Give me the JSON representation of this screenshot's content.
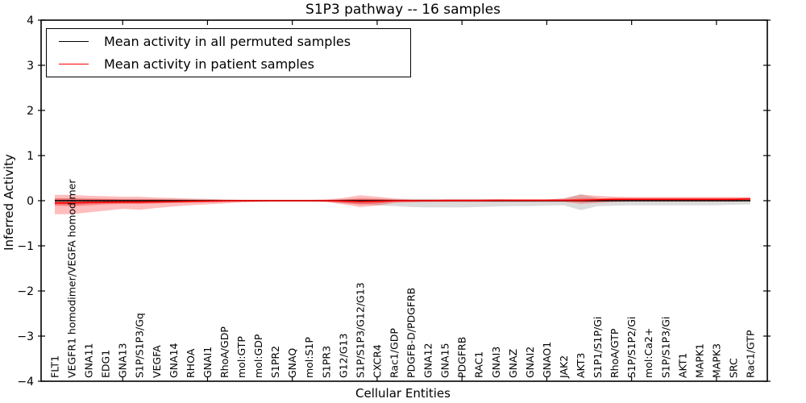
{
  "chart": {
    "title": "S1P3 pathway -- 16 samples",
    "xlabel": "Cellular Entities",
    "ylabel": "Inferred Activity"
  },
  "chart_data": {
    "type": "line",
    "title": "S1P3 pathway -- 16 samples",
    "xlabel": "Cellular Entities",
    "ylabel": "Inferred Activity",
    "ylim": [
      -4,
      4
    ],
    "ytick_labels": [
      "4",
      "3",
      "2",
      "1",
      "0",
      "−1",
      "−2",
      "−3",
      "−4"
    ],
    "ytick_values": [
      4,
      3,
      2,
      1,
      0,
      -1,
      -2,
      -3,
      -4
    ],
    "xtick_every": 5,
    "xtick_start_index": 4,
    "grid": false,
    "legend_position": "upper left",
    "legend": [
      {
        "label": "Mean activity in all permuted samples",
        "color": "#000000"
      },
      {
        "label": "Mean activity in patient samples",
        "color": "#ff0000"
      }
    ],
    "categories": [
      "FLT1",
      "VEGFR1 homodimer/VEGFA homodimer",
      "GNA11",
      "EDG1",
      "GNA13",
      "S1P/S1P3/Gq",
      "VEGFA",
      "GNA14",
      "RHOA",
      "GNAI1",
      "RhoA/GDP",
      "mol:GTP",
      "mol:GDP",
      "S1PR2",
      "GNAQ",
      "mol:S1P",
      "S1PR3",
      "G12/G13",
      "S1P/S1P3/G12/G13",
      "CXCR4",
      "Rac1/GDP",
      "PDGFB-D/PDGFRB",
      "GNA12",
      "GNA15",
      "PDGFRB",
      "RAC1",
      "GNAI3",
      "GNAZ",
      "GNAI2",
      "GNAO1",
      "JAK2",
      "AKT3",
      "S1P1/S1P/Gi",
      "RhoA/GTP",
      "S1P/S1P2/Gi",
      "mol:Ca2+",
      "S1P/S1P3/Gi",
      "AKT1",
      "MAPK1",
      "MAPK3",
      "SRC",
      "Rac1/GTP"
    ],
    "series": [
      {
        "name": "Mean activity in all permuted samples",
        "color": "#000000",
        "values": [
          0,
          0,
          0,
          0,
          0,
          0,
          0,
          0,
          0,
          0,
          0,
          0,
          0,
          0,
          0,
          0,
          0,
          0,
          0,
          0,
          0,
          0,
          0,
          0,
          0,
          0,
          0,
          0,
          0,
          0,
          0,
          0,
          0,
          0,
          0,
          0,
          0,
          0,
          0,
          0,
          0,
          0
        ]
      },
      {
        "name": "Mean activity in patient samples",
        "color": "#ff0000",
        "values": [
          -0.05,
          -0.05,
          -0.04,
          -0.035,
          -0.03,
          -0.03,
          -0.025,
          -0.02,
          -0.015,
          -0.01,
          -0.005,
          0,
          0,
          0,
          0,
          0,
          0,
          -0.01,
          -0.02,
          -0.015,
          -0.005,
          0,
          0,
          0.005,
          0.005,
          0.005,
          0.01,
          0.01,
          0.01,
          0.01,
          0.01,
          0.01,
          0.02,
          0.03,
          0.03,
          0.03,
          0.03,
          0.03,
          0.03,
          0.03,
          0.03,
          0.04
        ]
      }
    ],
    "bands": [
      {
        "name": "permuted-activity-range",
        "color": "#000000",
        "opacity": 0.14,
        "upper": [
          0.05,
          0.05,
          0.05,
          0.04,
          0.04,
          0.04,
          0.04,
          0.04,
          0.03,
          0.03,
          0.02,
          0.02,
          0.015,
          0.015,
          0.015,
          0.015,
          0.02,
          0.03,
          0.04,
          0.04,
          0.04,
          0.04,
          0.04,
          0.04,
          0.04,
          0.04,
          0.035,
          0.03,
          0.03,
          0.03,
          0.05,
          0.15,
          0.06,
          0.04,
          0.035,
          0.035,
          0.03,
          0.03,
          0.03,
          0.03,
          0.03,
          0.025
        ],
        "lower": [
          -0.08,
          -0.08,
          -0.07,
          -0.06,
          -0.06,
          -0.06,
          -0.05,
          -0.05,
          -0.04,
          -0.035,
          -0.03,
          -0.025,
          -0.02,
          -0.02,
          -0.02,
          -0.02,
          -0.03,
          -0.06,
          -0.08,
          -0.1,
          -0.12,
          -0.14,
          -0.15,
          -0.15,
          -0.15,
          -0.14,
          -0.13,
          -0.12,
          -0.12,
          -0.11,
          -0.1,
          -0.21,
          -0.12,
          -0.11,
          -0.1,
          -0.1,
          -0.1,
          -0.1,
          -0.1,
          -0.1,
          -0.09,
          -0.08
        ]
      },
      {
        "name": "patient-activity-range-outer",
        "color": "#ff0000",
        "opacity": 0.26,
        "upper": [
          0.13,
          0.13,
          0.11,
          0.1,
          0.09,
          0.09,
          0.07,
          0.06,
          0.05,
          0.04,
          0.03,
          0.02,
          0.02,
          0.02,
          0.02,
          0.02,
          0.03,
          0.06,
          0.12,
          0.09,
          0.05,
          0.03,
          0.03,
          0.03,
          0.03,
          0.03,
          0.03,
          0.03,
          0.03,
          0.03,
          0.05,
          0.13,
          0.11,
          0.09,
          0.08,
          0.08,
          0.08,
          0.08,
          0.08,
          0.08,
          0.08,
          0.08
        ],
        "lower": [
          -0.3,
          -0.3,
          -0.26,
          -0.22,
          -0.18,
          -0.2,
          -0.16,
          -0.13,
          -0.1,
          -0.08,
          -0.06,
          -0.04,
          -0.03,
          -0.02,
          -0.02,
          -0.02,
          -0.03,
          -0.08,
          -0.14,
          -0.11,
          -0.05,
          -0.04,
          -0.03,
          -0.03,
          -0.03,
          -0.03,
          -0.03,
          -0.03,
          -0.03,
          -0.03,
          -0.03,
          -0.07,
          -0.05,
          -0.03,
          -0.02,
          -0.02,
          -0.02,
          -0.02,
          -0.02,
          -0.02,
          -0.02,
          -0.01
        ]
      },
      {
        "name": "patient-activity-range-inner",
        "color": "#ff0000",
        "opacity": 0.32,
        "upper": [
          0.05,
          0.05,
          0.04,
          0.04,
          0.03,
          0.03,
          0.03,
          0.02,
          0.02,
          0.015,
          0.01,
          0.01,
          0.01,
          0.01,
          0.01,
          0.01,
          0.01,
          0.03,
          0.05,
          0.04,
          0.02,
          0.01,
          0.01,
          0.01,
          0.01,
          0.01,
          0.015,
          0.015,
          0.015,
          0.015,
          0.02,
          0.05,
          0.05,
          0.06,
          0.06,
          0.06,
          0.06,
          0.06,
          0.06,
          0.06,
          0.06,
          0.06
        ],
        "lower": [
          -0.11,
          -0.12,
          -0.1,
          -0.08,
          -0.07,
          -0.07,
          -0.06,
          -0.05,
          -0.04,
          -0.03,
          -0.02,
          -0.015,
          -0.01,
          -0.01,
          -0.01,
          -0.01,
          -0.01,
          -0.04,
          -0.08,
          -0.06,
          -0.02,
          -0.01,
          -0.01,
          -0.01,
          -0.01,
          -0.01,
          -0.01,
          -0.01,
          -0.01,
          -0.01,
          -0.01,
          -0.03,
          -0.02,
          -0.01,
          0,
          0,
          0,
          0,
          0,
          0,
          0,
          0
        ]
      }
    ],
    "zero_reference_line": {
      "y": 0,
      "style": "dotted",
      "color": "#000000"
    }
  }
}
